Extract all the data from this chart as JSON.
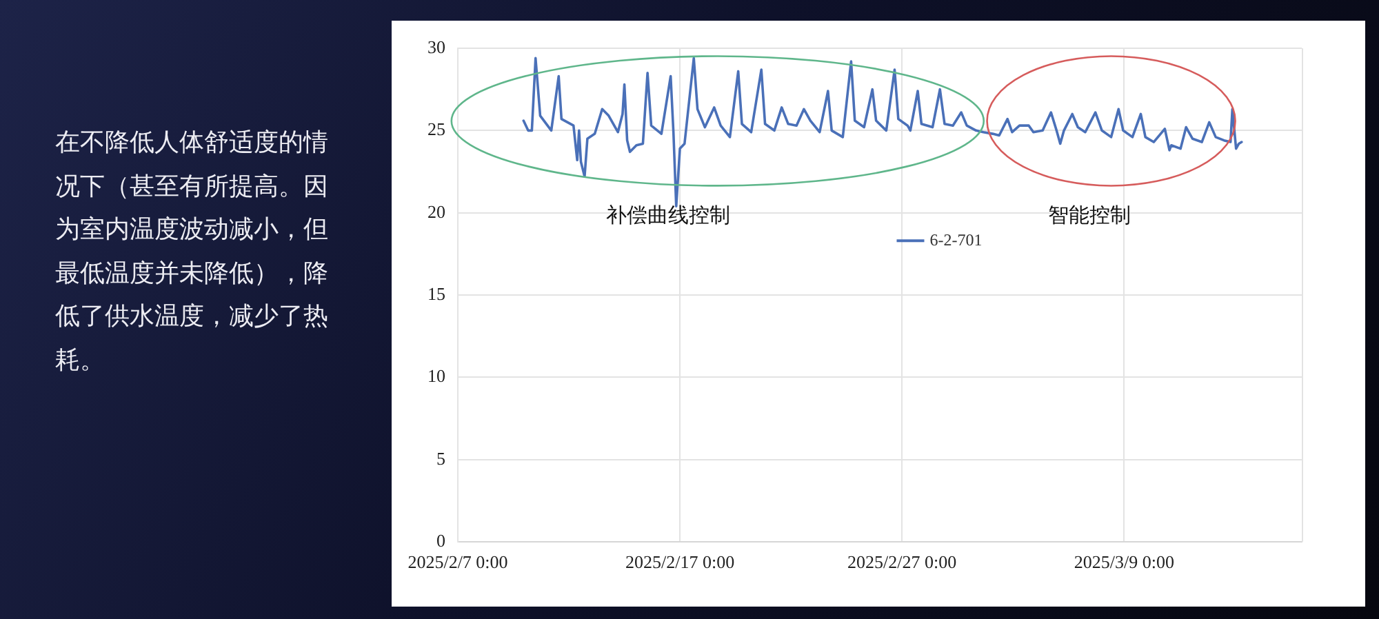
{
  "chart_data": {
    "type": "line",
    "x": [
      "2025-02-09T23:00",
      "2025-02-10T04:00",
      "2025-02-10T08:00",
      "2025-02-10T12:00",
      "2025-02-10T17:00",
      "2025-02-11T05:00",
      "2025-02-11T13:00",
      "2025-02-11T16:00",
      "2025-02-12T05:00",
      "2025-02-12T09:00",
      "2025-02-12T11:00",
      "2025-02-12T13:00",
      "2025-02-12T17:00",
      "2025-02-12T20:00",
      "2025-02-13T04:00",
      "2025-02-13T12:00",
      "2025-02-13T19:00",
      "2025-02-14T05:00",
      "2025-02-14T10:00",
      "2025-02-14T12:00",
      "2025-02-14T15:00",
      "2025-02-14T18:00",
      "2025-02-15T01:00",
      "2025-02-15T08:00",
      "2025-02-15T13:00",
      "2025-02-15T17:00",
      "2025-02-16T04:00",
      "2025-02-16T14:00",
      "2025-02-16T17:00",
      "2025-02-16T20:00",
      "2025-02-17T00:00",
      "2025-02-17T05:00",
      "2025-02-17T15:00",
      "2025-02-17T19:00",
      "2025-02-18T03:00",
      "2025-02-18T13:00",
      "2025-02-18T20:00",
      "2025-02-19T06:00",
      "2025-02-19T15:00",
      "2025-02-19T19:00",
      "2025-02-20T05:00",
      "2025-02-20T16:00",
      "2025-02-20T20:00",
      "2025-02-21T06:00",
      "2025-02-21T14:00",
      "2025-02-21T21:00",
      "2025-02-22T06:00",
      "2025-02-22T14:00",
      "2025-02-22T21:00",
      "2025-02-23T07:00",
      "2025-02-23T16:00",
      "2025-02-23T20:00",
      "2025-02-24T08:00",
      "2025-02-24T17:00",
      "2025-02-24T21:00",
      "2025-02-25T07:00",
      "2025-02-25T16:00",
      "2025-02-25T20:00",
      "2025-02-26T07:00",
      "2025-02-26T16:00",
      "2025-02-26T20:00",
      "2025-02-27T06:00",
      "2025-02-27T09:00",
      "2025-02-27T17:00",
      "2025-02-27T21:00",
      "2025-02-28T09:00",
      "2025-02-28T17:00",
      "2025-02-28T22:00",
      "2025-03-01T07:00",
      "2025-03-01T16:00",
      "2025-03-01T22:00",
      "2025-03-02T08:00",
      "2025-03-02T16:00",
      "2025-03-03T02:00",
      "2025-03-03T09:00",
      "2025-03-03T18:00",
      "2025-03-03T23:00",
      "2025-03-04T07:00",
      "2025-03-04T17:00",
      "2025-03-04T22:00",
      "2025-03-05T08:00",
      "2025-03-05T17:00",
      "2025-03-05T23:00",
      "2025-03-06T03:00",
      "2025-03-06T07:00",
      "2025-03-06T16:00",
      "2025-03-06T22:00",
      "2025-03-07T06:00",
      "2025-03-07T17:00",
      "2025-03-08T00:00",
      "2025-03-08T10:00",
      "2025-03-08T18:00",
      "2025-03-08T23:00",
      "2025-03-09T09:00",
      "2025-03-09T18:00",
      "2025-03-09T23:00",
      "2025-03-10T08:00",
      "2025-03-10T20:00",
      "2025-03-11T01:00",
      "2025-03-11T03:00",
      "2025-03-11T13:00",
      "2025-03-11T19:00",
      "2025-03-12T02:00",
      "2025-03-12T12:00",
      "2025-03-12T20:00",
      "2025-03-13T03:00",
      "2025-03-13T12:00",
      "2025-03-13T19:00",
      "2025-03-13T21:00",
      "2025-03-14T01:00",
      "2025-03-14T04:00",
      "2025-03-14T07:00"
    ],
    "series": [
      {
        "name": "6-2-701",
        "color": "#4a70b8",
        "values": [
          25.6,
          25.0,
          25.0,
          29.4,
          25.9,
          25.0,
          28.3,
          25.7,
          25.3,
          23.2,
          25.0,
          23.1,
          22.2,
          24.5,
          24.8,
          26.3,
          25.9,
          24.9,
          26.0,
          27.8,
          24.4,
          23.7,
          24.1,
          24.2,
          28.5,
          25.3,
          24.8,
          28.3,
          24.9,
          20.4,
          23.9,
          24.2,
          29.4,
          26.3,
          25.2,
          26.4,
          25.3,
          24.6,
          28.6,
          25.4,
          24.9,
          28.7,
          25.4,
          25.0,
          26.4,
          25.4,
          25.3,
          26.3,
          25.6,
          24.9,
          27.4,
          25.0,
          24.6,
          29.2,
          25.6,
          25.2,
          27.5,
          25.6,
          25.0,
          28.7,
          25.7,
          25.3,
          25.0,
          27.4,
          25.4,
          25.2,
          27.5,
          25.4,
          25.3,
          26.1,
          25.3,
          25.0,
          24.9,
          24.8,
          24.7,
          25.7,
          24.9,
          25.3,
          25.3,
          24.9,
          25.0,
          26.1,
          25.0,
          24.2,
          25.0,
          26.0,
          25.2,
          24.9,
          26.1,
          25.0,
          24.6,
          26.3,
          25.0,
          24.6,
          26.0,
          24.6,
          24.3,
          25.1,
          23.8,
          24.1,
          23.9,
          25.2,
          24.5,
          24.3,
          25.5,
          24.6,
          24.4,
          24.3,
          26.3,
          23.9,
          24.2,
          24.3
        ]
      }
    ],
    "xlim": [
      "2025-02-07",
      "2025-03-17"
    ],
    "xticks": [
      {
        "value": "2025-02-07",
        "label": "2025/2/7 0:00"
      },
      {
        "value": "2025-02-17",
        "label": "2025/2/17 0:00"
      },
      {
        "value": "2025-02-27",
        "label": "2025/2/27 0:00"
      },
      {
        "value": "2025-03-09",
        "label": "2025/3/9 0:00"
      }
    ],
    "ylim": [
      0,
      30
    ],
    "yticks": [
      0,
      5,
      10,
      15,
      20,
      25,
      30
    ],
    "grid": true,
    "legend": "top",
    "annotations": [
      "在不降低人体舒适度的情况下（甚至有所提高。因为室内温度波动减小，但最低温度并未降低），降低了供水温度，减少了热耗。",
      "补偿曲线控制",
      "智能控制"
    ]
  }
}
